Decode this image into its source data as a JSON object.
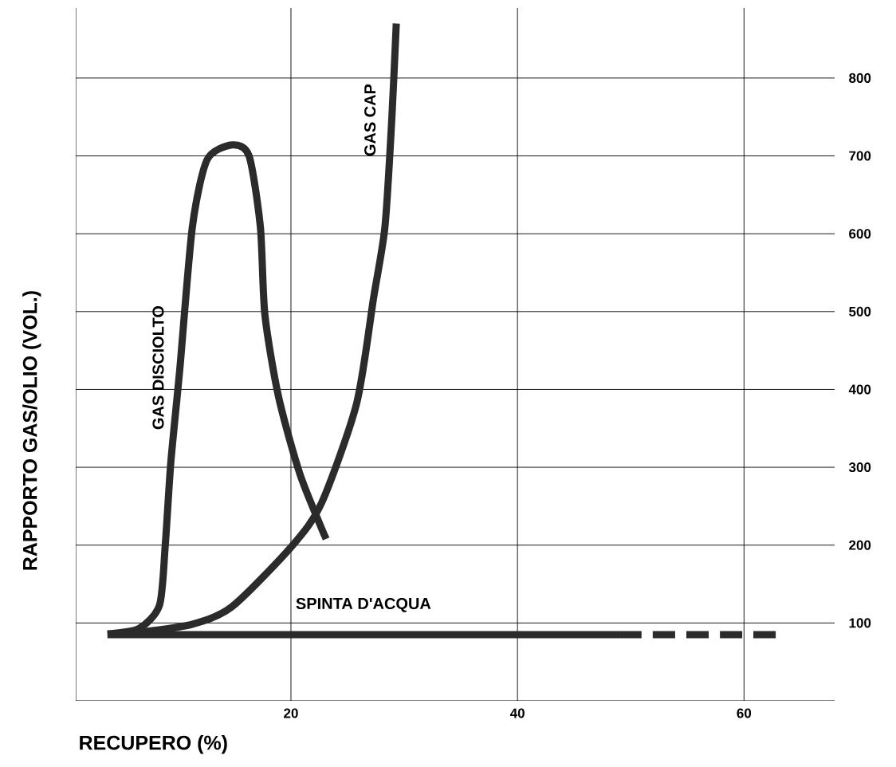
{
  "chart_data": {
    "type": "line",
    "xlabel": "RECUPERO (%)",
    "ylabel": "RAPPORTO GAS/OLIO (VOL.)",
    "xlim": [
      1,
      68
    ],
    "ylim": [
      0,
      890
    ],
    "xticks": [
      20,
      40,
      60
    ],
    "yticks": [
      100,
      200,
      300,
      400,
      500,
      600,
      700,
      800
    ],
    "grid": true,
    "marker": "none",
    "line_style": "solid",
    "series": [
      {
        "name": "GAS DISCIOLTO",
        "color": "#2b2b2b",
        "x": [
          3.8,
          6.6,
          8.4,
          8.9,
          9.4,
          10.2,
          11.3,
          12.6,
          14.8,
          16.3,
          17.3,
          17.7,
          18.9,
          20.8,
          23.1
        ],
        "values": [
          86,
          93,
          123,
          199,
          307,
          428,
          609,
          695,
          714,
          700,
          609,
          496,
          391,
          291,
          208
        ]
      },
      {
        "name": "GAS CAP",
        "color": "#2b2b2b",
        "x": [
          5.4,
          11.2,
          14.8,
          20.1,
          22.7,
          25.8,
          27.3,
          28.3,
          28.9,
          29.3
        ],
        "values": [
          86,
          98,
          121,
          199,
          254,
          382,
          518,
          609,
          746,
          870
        ]
      },
      {
        "name": "SPINTA D'ACQUA",
        "color": "#2b2b2b",
        "x": [
          3.8,
          49.0
        ],
        "values": [
          85,
          85
        ]
      },
      {
        "color": "#2b2b2b",
        "x": [
          49.0,
          63.0
        ],
        "values": [
          85,
          85
        ],
        "line_style": "dashed"
      }
    ]
  }
}
